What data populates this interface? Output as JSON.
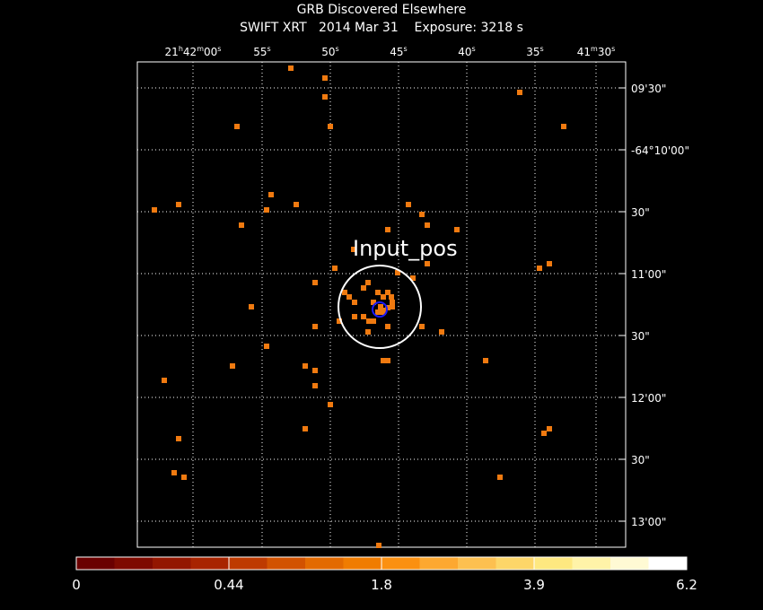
{
  "header": {
    "title": "GRB Discovered Elsewhere",
    "subtitle": "SWIFT XRT   2014 Mar 31    Exposure: 3218 s"
  },
  "top_labels": [
    [
      "21",
      "h",
      "42",
      "m",
      "00",
      "s"
    ],
    [
      "55",
      "s"
    ],
    [
      "50",
      "s"
    ],
    [
      "45",
      "s"
    ],
    [
      "40",
      "s"
    ],
    [
      "35",
      "s"
    ],
    [
      "41",
      "m",
      "30",
      "s"
    ]
  ],
  "right_labels": [
    "09'30\"",
    "-64°10'00\"",
    "30\"",
    "11'00\"",
    "30\"",
    "12'00\"",
    "30\"",
    "13'00\""
  ],
  "annotation": "Input_pos",
  "colorbar": {
    "labels": [
      "0",
      "0.44",
      "1.8",
      "3.9",
      "6.2"
    ]
  }
}
